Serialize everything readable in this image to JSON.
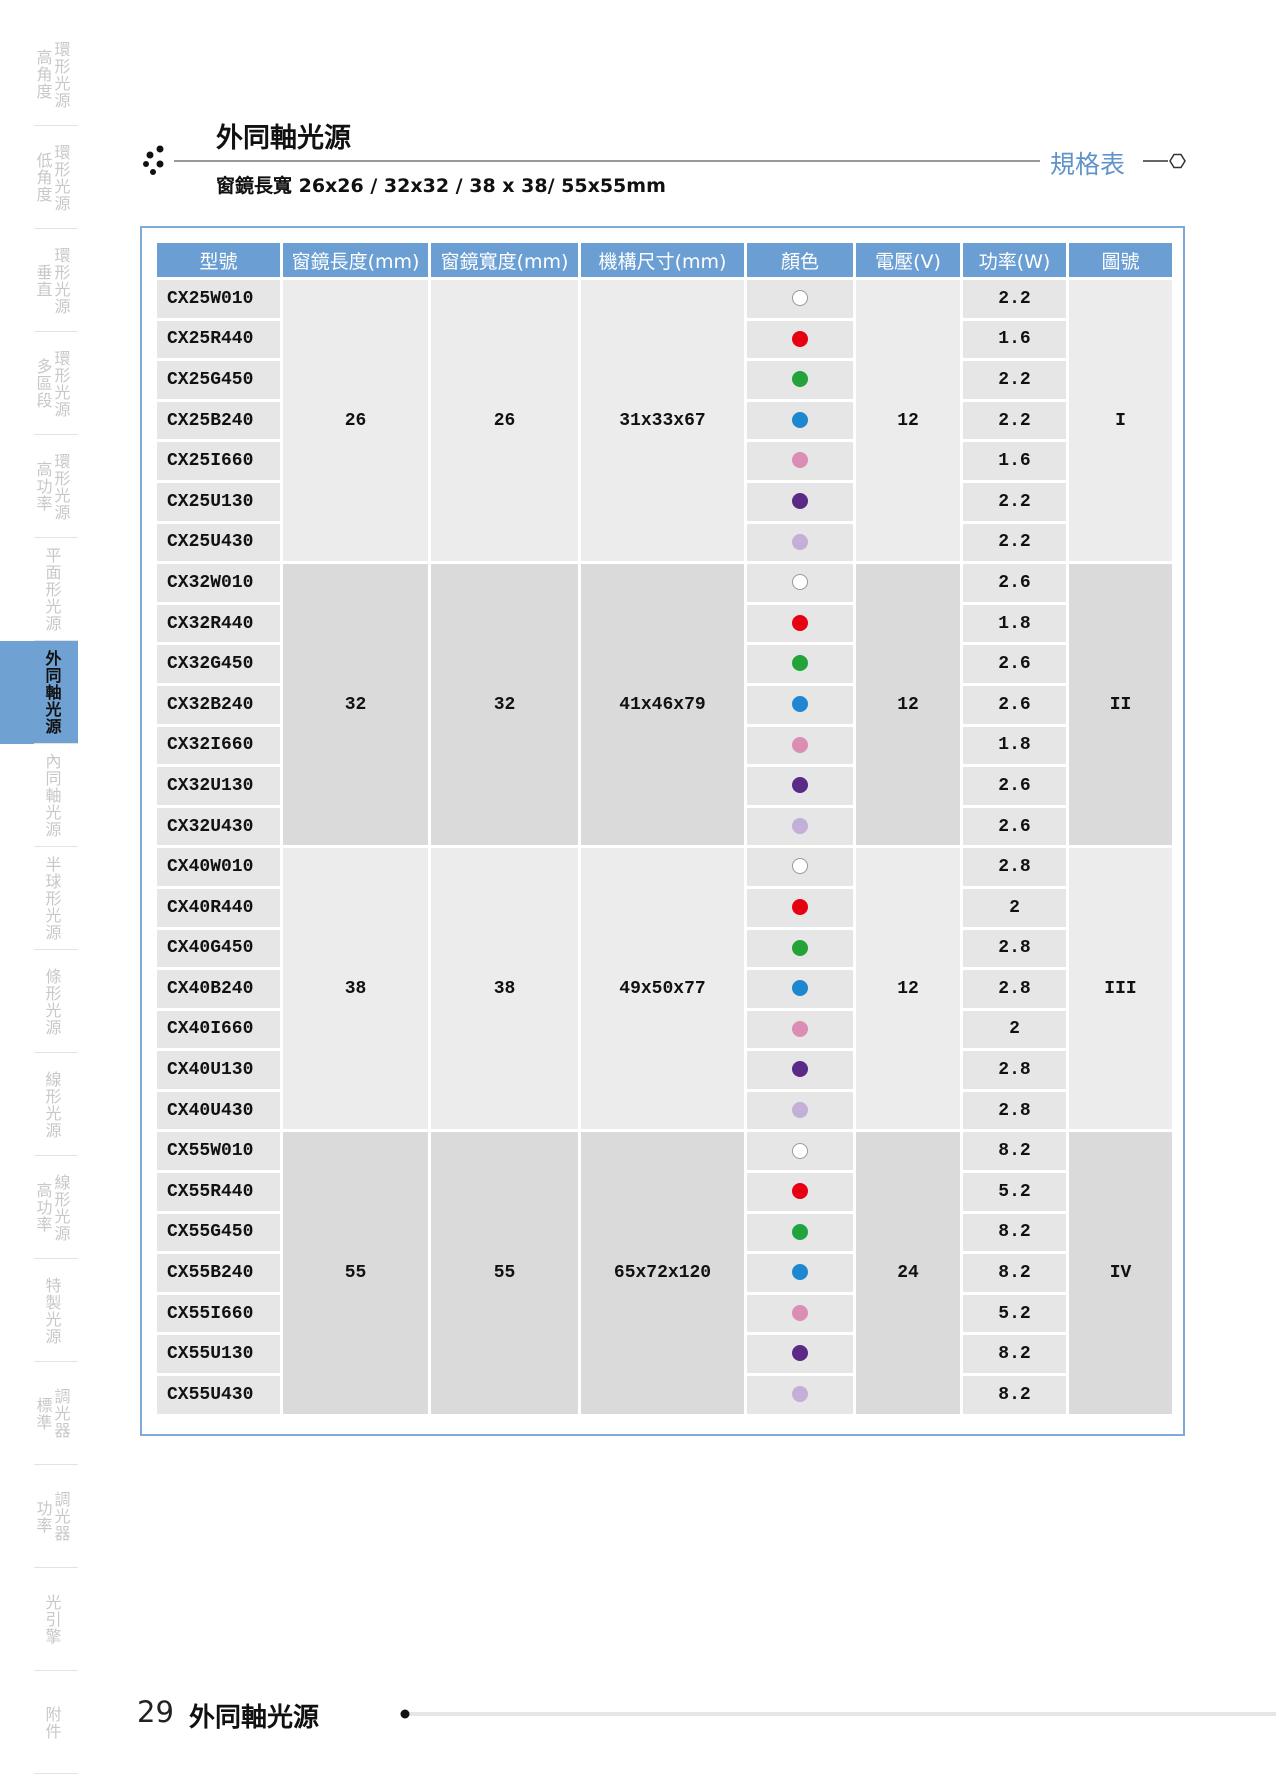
{
  "sidebar": [
    {
      "lines": [
        "高角度",
        "環形光源"
      ]
    },
    {
      "lines": [
        "低角度",
        "環形光源"
      ]
    },
    {
      "lines": [
        "垂直",
        "環形光源"
      ]
    },
    {
      "lines": [
        "多區段",
        "環形光源"
      ]
    },
    {
      "lines": [
        "高功率",
        "環形光源"
      ]
    },
    {
      "lines": [
        "平面形光源"
      ]
    },
    {
      "lines": [
        "外同軸光源"
      ],
      "active": true
    },
    {
      "lines": [
        "內同軸光源"
      ]
    },
    {
      "lines": [
        "半球形光源"
      ]
    },
    {
      "lines": [
        "條形光源"
      ]
    },
    {
      "lines": [
        "線形光源"
      ]
    },
    {
      "lines": [
        "高功率",
        "線形光源"
      ]
    },
    {
      "lines": [
        "特製光源"
      ]
    },
    {
      "lines": [
        "標準",
        "調光器"
      ]
    },
    {
      "lines": [
        "功率",
        "調光器"
      ]
    },
    {
      "lines": [
        "光引擎"
      ]
    },
    {
      "lines": [
        "附件"
      ]
    }
  ],
  "header": {
    "title": "外同軸光源",
    "subtitle": "窗鏡長寬 26x26 / 32x32 / 38 x 38/ 55x55mm",
    "tag": "規格表"
  },
  "table": {
    "columns": [
      "型號",
      "窗鏡長度(mm)",
      "窗鏡寬度(mm)",
      "機構尺寸(mm)",
      "顏色",
      "電壓(V)",
      "功率(W)",
      "圖號"
    ],
    "groups": [
      {
        "length": "26",
        "width": "26",
        "size": "31x33x67",
        "voltage": "12",
        "figure": "I",
        "rows": [
          {
            "model": "CX25W010",
            "color": "#ffffff",
            "power": "2.2"
          },
          {
            "model": "CX25R440",
            "color": "#e60012",
            "power": "1.6"
          },
          {
            "model": "CX25G450",
            "color": "#23a33a",
            "power": "2.2"
          },
          {
            "model": "CX25B240",
            "color": "#1d88d0",
            "power": "2.2"
          },
          {
            "model": "CX25I660",
            "color": "#dc8db3",
            "power": "1.6"
          },
          {
            "model": "CX25U130",
            "color": "#5a2a86",
            "power": "2.2"
          },
          {
            "model": "CX25U430",
            "color": "#c3afd8",
            "power": "2.2"
          }
        ]
      },
      {
        "length": "32",
        "width": "32",
        "size": "41x46x79",
        "voltage": "12",
        "figure": "II",
        "rows": [
          {
            "model": "CX32W010",
            "color": "#ffffff",
            "power": "2.6"
          },
          {
            "model": "CX32R440",
            "color": "#e60012",
            "power": "1.8"
          },
          {
            "model": "CX32G450",
            "color": "#23a33a",
            "power": "2.6"
          },
          {
            "model": "CX32B240",
            "color": "#1d88d0",
            "power": "2.6"
          },
          {
            "model": "CX32I660",
            "color": "#dc8db3",
            "power": "1.8"
          },
          {
            "model": "CX32U130",
            "color": "#5a2a86",
            "power": "2.6"
          },
          {
            "model": "CX32U430",
            "color": "#c3afd8",
            "power": "2.6"
          }
        ]
      },
      {
        "length": "38",
        "width": "38",
        "size": "49x50x77",
        "voltage": "12",
        "figure": "III",
        "rows": [
          {
            "model": "CX40W010",
            "color": "#ffffff",
            "power": "2.8"
          },
          {
            "model": "CX40R440",
            "color": "#e60012",
            "power": "2"
          },
          {
            "model": "CX40G450",
            "color": "#23a33a",
            "power": "2.8"
          },
          {
            "model": "CX40B240",
            "color": "#1d88d0",
            "power": "2.8"
          },
          {
            "model": "CX40I660",
            "color": "#dc8db3",
            "power": "2"
          },
          {
            "model": "CX40U130",
            "color": "#5a2a86",
            "power": "2.8"
          },
          {
            "model": "CX40U430",
            "color": "#c3afd8",
            "power": "2.8"
          }
        ]
      },
      {
        "length": "55",
        "width": "55",
        "size": "65x72x120",
        "voltage": "24",
        "figure": "IV",
        "rows": [
          {
            "model": "CX55W010",
            "color": "#ffffff",
            "power": "8.2"
          },
          {
            "model": "CX55R440",
            "color": "#e60012",
            "power": "5.2"
          },
          {
            "model": "CX55G450",
            "color": "#23a33a",
            "power": "8.2"
          },
          {
            "model": "CX55B240",
            "color": "#1d88d0",
            "power": "8.2"
          },
          {
            "model": "CX55I660",
            "color": "#dc8db3",
            "power": "5.2"
          },
          {
            "model": "CX55U130",
            "color": "#5a2a86",
            "power": "8.2"
          },
          {
            "model": "CX55U430",
            "color": "#c3afd8",
            "power": "8.2"
          }
        ]
      }
    ]
  },
  "footer": {
    "page": "29",
    "title": "外同軸光源"
  }
}
